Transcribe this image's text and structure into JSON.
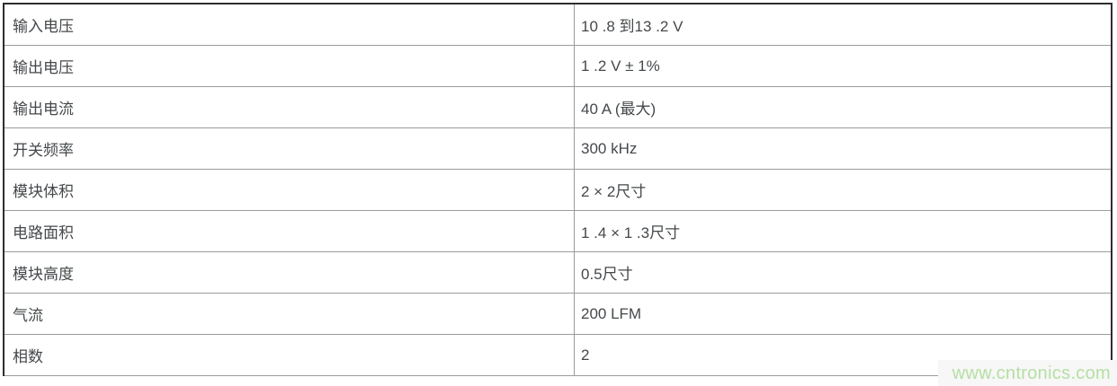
{
  "table": {
    "rows": [
      {
        "label": "输入电压",
        "value": "10 .8 到13 .2 V"
      },
      {
        "label": "输出电压",
        "value": "1 .2 V ± 1%"
      },
      {
        "label": "输出电流",
        "value": "40 A (最大)"
      },
      {
        "label": "开关频率",
        "value": "300 kHz"
      },
      {
        "label": "模块体积",
        "value": "2 × 2尺寸"
      },
      {
        "label": "电路面积",
        "value": "1 .4 × 1 .3尺寸"
      },
      {
        "label": "模块高度",
        "value": "0.5尺寸"
      },
      {
        "label": "气流",
        "value": "200 LFM"
      },
      {
        "label": "相数",
        "value": "2"
      }
    ]
  },
  "watermark": {
    "text": "www.cntronics.com",
    "color": "#b5dfa3"
  },
  "colors": {
    "outer_border": "#2e2e2e",
    "inner_border": "#9b9b9b",
    "text": "#45484b",
    "background": "#ffffff",
    "watermark_green": "#b5dfa3"
  }
}
